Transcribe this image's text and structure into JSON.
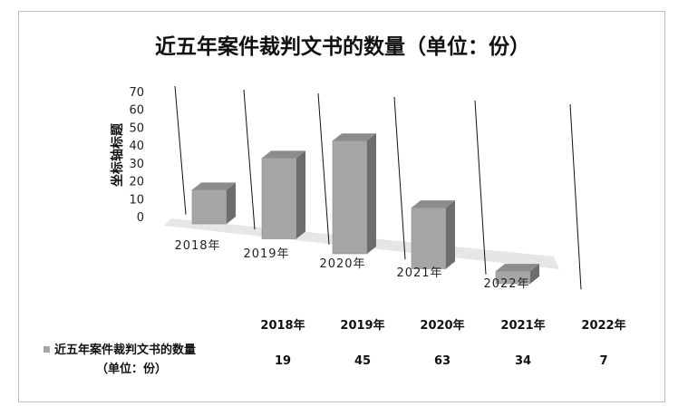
{
  "chart_data": {
    "type": "bar",
    "title": "近五年案件裁判文书的数量（单位：份）",
    "ylabel": "坐标轴标题",
    "xlabel": "",
    "categories": [
      "2018年",
      "2019年",
      "2020年",
      "2021年",
      "2022年"
    ],
    "series": [
      {
        "name": "近五年案件裁判文书的数量（单位：份）",
        "name_lines": [
          "近五年案件裁判文书的数量",
          "（单位：份）"
        ],
        "values": [
          19,
          45,
          63,
          34,
          7
        ],
        "color": "#a6a6a6"
      }
    ],
    "ylim": [
      0,
      70
    ],
    "yticks": [
      "0",
      "10",
      "20",
      "30",
      "40",
      "50",
      "60",
      "70"
    ],
    "grid": false,
    "style": "3d-column",
    "data_table": true,
    "legend_placement": "data-table-left"
  }
}
